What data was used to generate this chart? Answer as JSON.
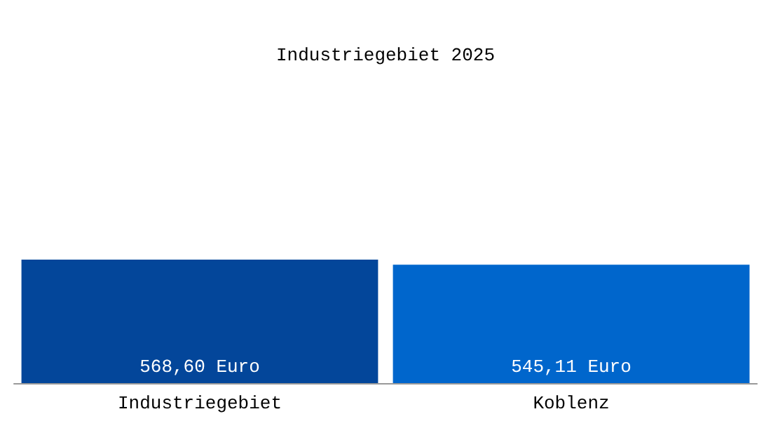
{
  "chart_data": {
    "type": "bar",
    "title": "Industriegebiet 2025",
    "categories": [
      "Industriegebiet",
      "Koblenz"
    ],
    "values": [
      568.6,
      545.11
    ],
    "colors": [
      "#03469a",
      "#0066cc"
    ],
    "value_labels": [
      "568,60 Euro",
      "545,11 Euro"
    ]
  }
}
